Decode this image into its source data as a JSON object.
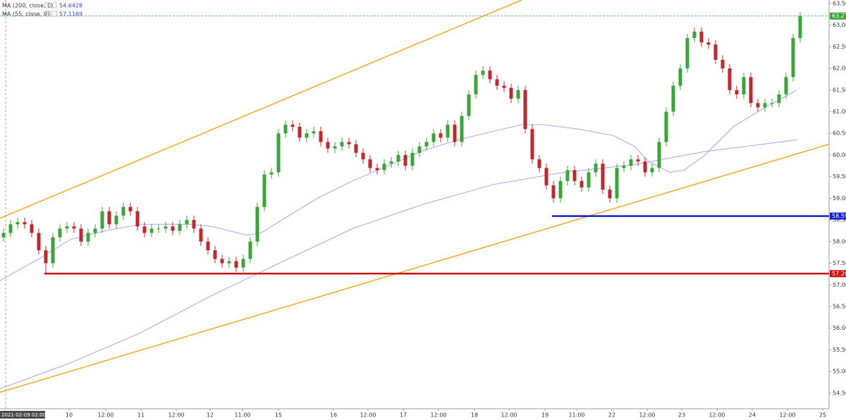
{
  "chart_data": {
    "type": "candlestick",
    "up_color": "#3aa63a",
    "down_color": "#c1272d",
    "open": [
      58.1,
      58.2,
      58.4,
      58.45,
      58.4,
      58.2,
      57.8,
      57.5,
      58.1,
      58.3,
      58.35,
      58.3,
      58.0,
      58.2,
      58.3,
      58.7,
      58.4,
      58.6,
      58.8,
      58.7,
      58.35,
      58.2,
      58.3,
      58.3,
      58.35,
      58.25,
      58.4,
      58.5,
      58.3,
      58.0,
      57.8,
      57.6,
      57.5,
      57.55,
      57.4,
      57.6,
      58.0,
      58.8,
      59.55,
      59.6,
      60.5,
      60.7,
      60.65,
      60.4,
      60.5,
      60.55,
      60.3,
      60.15,
      60.2,
      60.3,
      60.25,
      60.05,
      59.9,
      59.7,
      59.65,
      59.8,
      59.85,
      60.0,
      59.75,
      60.05,
      60.2,
      60.3,
      60.5,
      60.4,
      60.7,
      60.3,
      60.9,
      61.4,
      61.85,
      61.95,
      61.75,
      61.6,
      61.55,
      61.3,
      61.5,
      60.6,
      59.9,
      59.7,
      59.3,
      59.0,
      59.4,
      59.65,
      59.4,
      59.25,
      59.6,
      59.8,
      59.2,
      59.0,
      59.7,
      59.75,
      59.9,
      59.85,
      59.6,
      59.7,
      60.3,
      61.0,
      61.6,
      62.0,
      62.7,
      62.85,
      62.6,
      62.55,
      62.2,
      62.0,
      61.5,
      61.4,
      61.8,
      61.2,
      61.1,
      61.2,
      61.2,
      61.4,
      61.8,
      62.7
    ],
    "high": [
      58.3,
      58.5,
      58.55,
      58.55,
      58.5,
      58.3,
      57.9,
      58.2,
      58.4,
      58.45,
      58.45,
      58.4,
      58.3,
      58.4,
      58.8,
      58.8,
      58.7,
      58.9,
      58.9,
      58.8,
      58.45,
      58.4,
      58.4,
      58.45,
      58.45,
      58.5,
      58.6,
      58.6,
      58.4,
      58.1,
      57.9,
      57.7,
      57.65,
      57.65,
      57.7,
      58.1,
      58.9,
      59.65,
      59.7,
      60.6,
      60.8,
      60.8,
      60.75,
      60.6,
      60.65,
      60.65,
      60.4,
      60.3,
      60.4,
      60.4,
      60.35,
      60.15,
      60.0,
      59.8,
      59.9,
      59.95,
      60.1,
      60.1,
      60.15,
      60.3,
      60.4,
      60.6,
      60.6,
      60.8,
      60.8,
      61.0,
      61.5,
      61.95,
      62.05,
      62.05,
      61.85,
      61.7,
      61.65,
      61.6,
      61.6,
      60.7,
      60.0,
      59.8,
      59.4,
      59.5,
      59.75,
      59.75,
      59.5,
      59.7,
      59.9,
      59.9,
      59.3,
      59.8,
      59.85,
      60.0,
      60.0,
      59.95,
      59.8,
      60.4,
      61.1,
      61.7,
      62.1,
      62.8,
      62.95,
      62.95,
      62.7,
      62.65,
      62.3,
      62.1,
      61.6,
      61.9,
      61.9,
      61.3,
      61.3,
      61.3,
      61.5,
      61.9,
      62.8,
      63.3
    ],
    "low": [
      58.0,
      58.1,
      58.3,
      58.3,
      58.1,
      57.7,
      57.26,
      57.4,
      58.0,
      58.2,
      58.2,
      57.9,
      57.9,
      58.1,
      58.2,
      58.3,
      58.3,
      58.5,
      58.6,
      58.25,
      58.1,
      58.1,
      58.2,
      58.2,
      58.15,
      58.15,
      58.3,
      58.2,
      57.9,
      57.7,
      57.5,
      57.4,
      57.4,
      57.3,
      57.3,
      57.5,
      57.9,
      58.7,
      59.45,
      59.5,
      60.4,
      60.55,
      60.3,
      60.3,
      60.4,
      60.2,
      60.05,
      60.05,
      60.1,
      60.15,
      59.95,
      59.8,
      59.6,
      59.55,
      59.55,
      59.7,
      59.75,
      59.65,
      59.65,
      59.95,
      60.1,
      60.2,
      60.3,
      60.3,
      60.2,
      60.2,
      60.8,
      61.3,
      61.75,
      61.65,
      61.5,
      61.45,
      61.2,
      61.2,
      60.5,
      59.8,
      59.6,
      59.2,
      58.9,
      58.9,
      59.3,
      59.3,
      59.15,
      59.15,
      59.5,
      59.1,
      58.9,
      58.9,
      59.6,
      59.65,
      59.75,
      59.5,
      59.5,
      59.6,
      60.2,
      60.9,
      61.5,
      61.9,
      62.6,
      62.5,
      62.45,
      62.1,
      61.9,
      61.4,
      61.3,
      61.3,
      61.1,
      61.0,
      61.0,
      61.1,
      61.1,
      61.3,
      61.7,
      62.6
    ],
    "close": [
      58.2,
      58.4,
      58.45,
      58.4,
      58.2,
      57.8,
      57.5,
      58.1,
      58.3,
      58.35,
      58.3,
      58.0,
      58.2,
      58.3,
      58.7,
      58.4,
      58.6,
      58.8,
      58.7,
      58.35,
      58.2,
      58.3,
      58.3,
      58.35,
      58.25,
      58.4,
      58.5,
      58.3,
      58.0,
      57.8,
      57.6,
      57.5,
      57.55,
      57.4,
      57.6,
      58.0,
      58.8,
      59.55,
      59.6,
      60.5,
      60.7,
      60.65,
      60.4,
      60.5,
      60.55,
      60.3,
      60.15,
      60.2,
      60.3,
      60.25,
      60.05,
      59.9,
      59.7,
      59.65,
      59.8,
      59.85,
      60.0,
      59.75,
      60.05,
      60.2,
      60.3,
      60.5,
      60.4,
      60.7,
      60.3,
      60.9,
      61.4,
      61.85,
      61.95,
      61.75,
      61.6,
      61.55,
      61.3,
      61.5,
      60.6,
      59.9,
      59.7,
      59.3,
      59.0,
      59.4,
      59.65,
      59.4,
      59.25,
      59.6,
      59.8,
      59.2,
      59.0,
      59.7,
      59.75,
      59.9,
      59.85,
      59.6,
      59.7,
      60.3,
      61.0,
      61.6,
      62.0,
      62.7,
      62.85,
      62.6,
      62.55,
      62.2,
      62.0,
      61.5,
      61.4,
      61.8,
      61.2,
      61.1,
      61.2,
      61.2,
      61.4,
      61.8,
      62.7,
      63.21
    ],
    "overlays": [
      {
        "name": "MA (200, close, 0)",
        "legend_value": 54.6428,
        "color": "#a3a3f2",
        "x": [
          -0.5,
          9.5,
          19.5,
          29.5,
          36,
          49.5,
          59.5,
          69.5,
          79.5,
          89.5,
          99.5,
          112.5
        ],
        "values": [
          54.6,
          55.2,
          55.9,
          56.75,
          57.26,
          58.3,
          58.86,
          59.32,
          59.6,
          59.78,
          60.08,
          60.35
        ]
      },
      {
        "name": "MA (55, close, 0)",
        "legend_value": 57.1169,
        "color": "#a3a3f2",
        "x": [
          -0.5,
          5,
          9.5,
          14.5,
          19.5,
          26.5,
          29.5,
          34.5,
          36.5,
          39.5,
          44.5,
          49.5,
          54.5,
          59.5,
          64.5,
          69.5,
          73.5,
          76.5,
          81.5,
          86.5,
          89.5,
          91.5,
          94.5,
          96.5,
          99.5,
          103.5,
          107.5,
          112.5
        ],
        "values": [
          57.1,
          57.6,
          58.05,
          58.25,
          58.4,
          58.4,
          58.35,
          58.15,
          58.2,
          58.5,
          59.0,
          59.4,
          59.75,
          60.1,
          60.35,
          60.55,
          60.7,
          60.7,
          60.6,
          60.45,
          60.2,
          59.85,
          59.6,
          59.65,
          60.0,
          60.65,
          61.05,
          61.5
        ]
      }
    ],
    "trendlines": [
      {
        "color": "#f5a623",
        "x": [
          -0.5,
          73.5
        ],
        "values": [
          58.54,
          63.58
        ]
      },
      {
        "color": "#f5a623",
        "x": [
          -0.5,
          117.1
        ],
        "values": [
          54.52,
          60.25
        ]
      }
    ],
    "levels": [
      {
        "value": 57.26,
        "start": 5.8,
        "color": "#cc1111"
      },
      {
        "value": 58.59,
        "start": 77.8,
        "color": "#1122cc"
      }
    ],
    "last_price": {
      "value": 63.21,
      "color": "#3aa63a"
    },
    "crosshair": {
      "x": 0.3,
      "label": "2021-02-09 02:00:00"
    },
    "xlim": [
      -0.5,
      117.1
    ],
    "ylim": [
      54.14,
      63.58
    ],
    "xticks": [
      {
        "value": 9.3,
        "label": "10"
      },
      {
        "value": 14.5,
        "label": "12:00"
      },
      {
        "value": 19.5,
        "label": "11"
      },
      {
        "value": 24.5,
        "label": "12:00"
      },
      {
        "value": 29.3,
        "label": "12"
      },
      {
        "value": 33.9,
        "label": "11:00"
      },
      {
        "value": 39,
        "label": "15"
      },
      {
        "value": 46.8,
        "label": "16"
      },
      {
        "value": 51.7,
        "label": "12:00"
      },
      {
        "value": 56.7,
        "label": "17"
      },
      {
        "value": 61.7,
        "label": "12:00"
      },
      {
        "value": 66.8,
        "label": "18"
      },
      {
        "value": 71.7,
        "label": "12:00"
      },
      {
        "value": 76.8,
        "label": "19"
      },
      {
        "value": 81.3,
        "label": "11:00"
      },
      {
        "value": 86.3,
        "label": "22"
      },
      {
        "value": 91.3,
        "label": "12:00"
      },
      {
        "value": 96.2,
        "label": "23"
      },
      {
        "value": 101.2,
        "label": "12:00"
      },
      {
        "value": 106.2,
        "label": "24"
      },
      {
        "value": 111.2,
        "label": "12:00"
      },
      {
        "value": 116.2,
        "label": "25"
      }
    ],
    "yticks": [
      {
        "value": 54.5,
        "label": "54.50"
      },
      {
        "value": 55,
        "label": "55.00"
      },
      {
        "value": 55.5,
        "label": "55.50"
      },
      {
        "value": 56,
        "label": "56.00"
      },
      {
        "value": 56.5,
        "label": "56.50"
      },
      {
        "value": 57,
        "label": "57.00"
      },
      {
        "value": 57.5,
        "label": "57.50"
      },
      {
        "value": 58,
        "label": "58.00"
      },
      {
        "value": 58.5,
        "label": "58.50"
      },
      {
        "value": 59,
        "label": "59.00"
      },
      {
        "value": 59.5,
        "label": "59.50"
      },
      {
        "value": 60,
        "label": "60.00"
      },
      {
        "value": 60.5,
        "label": "60.50"
      },
      {
        "value": 61,
        "label": "61.00"
      },
      {
        "value": 61.5,
        "label": "61.50"
      },
      {
        "value": 62,
        "label": "62.00"
      },
      {
        "value": 62.5,
        "label": "62.50"
      },
      {
        "value": 63,
        "label": "63.00"
      },
      {
        "value": 63.5,
        "label": "63.50"
      }
    ]
  }
}
